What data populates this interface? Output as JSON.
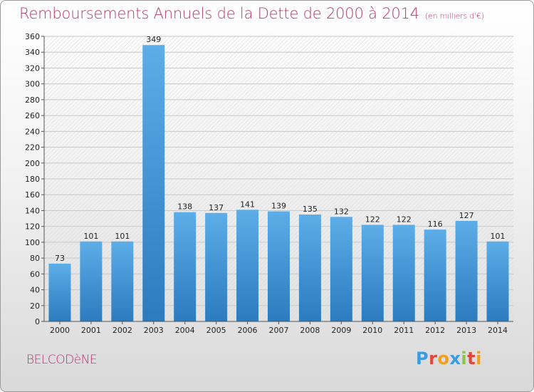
{
  "header": {
    "title": "Remboursements Annuels de la Dette de 2000 à 2014",
    "subtitle": "(en milliers d'€)"
  },
  "footer": {
    "commune": "BELCODèNE",
    "logo": "Proxiti",
    "logo_colors": [
      "#3a9be0",
      "#e0473a",
      "#f0a020",
      "#3a9be0",
      "#8bc34a",
      "#e0473a",
      "#f0a020"
    ]
  },
  "colors": {
    "title": "#b5366e",
    "bar_light": "#5dade8",
    "bar_dark": "#2b7bbf",
    "grid": "#c8c8c8"
  },
  "chart_data": {
    "type": "bar",
    "categories": [
      "2000",
      "2001",
      "2002",
      "2003",
      "2004",
      "2005",
      "2006",
      "2007",
      "2008",
      "2009",
      "2010",
      "2011",
      "2012",
      "2013",
      "2014"
    ],
    "values": [
      73,
      101,
      101,
      349,
      138,
      137,
      141,
      139,
      135,
      132,
      122,
      122,
      116,
      127,
      101
    ],
    "ylim": [
      0,
      360
    ],
    "yticks": [
      0,
      20,
      40,
      60,
      80,
      100,
      120,
      140,
      160,
      180,
      200,
      220,
      240,
      260,
      280,
      300,
      320,
      340,
      360
    ],
    "grid": true,
    "data_labels": true
  }
}
